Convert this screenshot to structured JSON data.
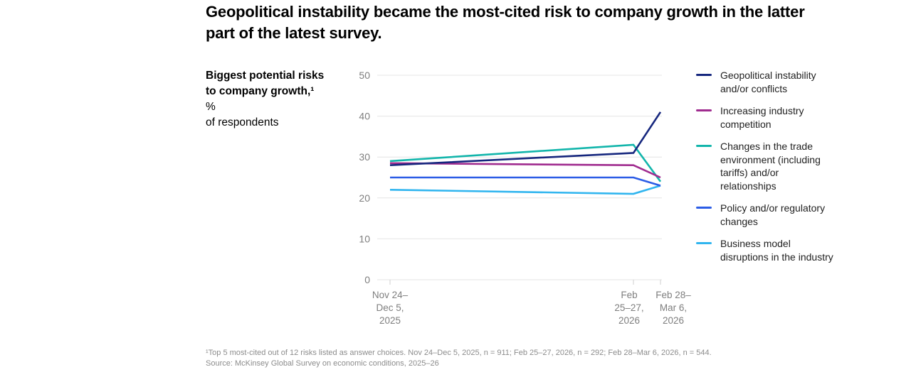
{
  "title": "Geopolitical instability became the most-cited risk to company growth in the latter part of the latest survey.",
  "side_label": {
    "bold_text": "Biggest potential risks to company growth,¹",
    "unit_suffix": " %",
    "line2": "of respondents"
  },
  "chart_data": {
    "type": "line",
    "title": "Biggest potential risks to company growth, % of respondents",
    "categories": [
      "Nov 24–Dec 5, 2025",
      "Feb 25–27, 2026",
      "Feb 28–Mar 6, 2026"
    ],
    "x_label_lines": [
      [
        "Nov 24–",
        "Dec 5,",
        "2025"
      ],
      [
        "Feb",
        "25–27,",
        "2026"
      ],
      [
        "Feb 28–",
        "Mar 6,",
        "2026"
      ]
    ],
    "y_ticks": [
      0,
      10,
      20,
      30,
      40,
      50
    ],
    "ylim": [
      0,
      50
    ],
    "grid": true,
    "legend_position": "right",
    "series": [
      {
        "name": "Geopolitical instability and/or conflicts",
        "color": "#16277E",
        "values": [
          28,
          31,
          41
        ]
      },
      {
        "name": "Increasing industry competition",
        "color": "#A02C8F",
        "values": [
          28.5,
          28,
          25
        ]
      },
      {
        "name": "Changes in the trade environment (including tariffs) and/or relationships",
        "color": "#12B5AB",
        "values": [
          29,
          33,
          24
        ]
      },
      {
        "name": "Policy and/or regulatory changes",
        "color": "#2B5CE6",
        "values": [
          25,
          25,
          23
        ]
      },
      {
        "name": "Business model disruptions in the industry",
        "color": "#30B5EF",
        "values": [
          22,
          21,
          23
        ]
      }
    ]
  },
  "footnote": {
    "note": "¹Top 5 most-cited out of 12 risks listed as answer choices. Nov 24–Dec 5, 2025, n = 911; Feb 25–27, 2026, n = 292; Feb 28–Mar 6, 2026, n = 544.",
    "source": "Source: McKinsey Global Survey on economic conditions, 2025–26"
  },
  "colors": {
    "grid_line": "#e4e4e4",
    "axis_tick": "#cfcfcf",
    "axis_text": "#7e7e7e",
    "title_text": "#000000",
    "footnote_text": "#8c8c8c"
  }
}
